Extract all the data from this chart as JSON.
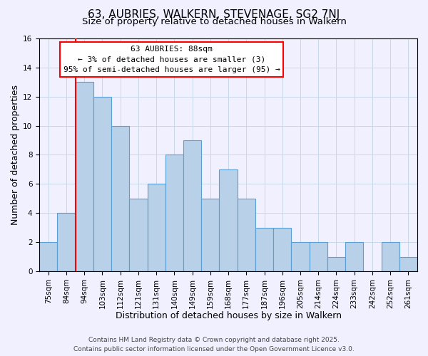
{
  "title": "63, AUBRIES, WALKERN, STEVENAGE, SG2 7NJ",
  "subtitle": "Size of property relative to detached houses in Walkern",
  "xlabel": "Distribution of detached houses by size in Walkern",
  "ylabel": "Number of detached properties",
  "bar_labels": [
    "75sqm",
    "84sqm",
    "94sqm",
    "103sqm",
    "112sqm",
    "121sqm",
    "131sqm",
    "140sqm",
    "149sqm",
    "159sqm",
    "168sqm",
    "177sqm",
    "187sqm",
    "196sqm",
    "205sqm",
    "214sqm",
    "224sqm",
    "233sqm",
    "242sqm",
    "252sqm",
    "261sqm"
  ],
  "bar_values": [
    2,
    4,
    13,
    12,
    10,
    5,
    6,
    8,
    9,
    5,
    7,
    5,
    3,
    3,
    2,
    2,
    1,
    2,
    0,
    2,
    1
  ],
  "bar_color": "#b8d0e8",
  "bar_edge_color": "#5a9fd4",
  "ylim": [
    0,
    16
  ],
  "yticks": [
    0,
    2,
    4,
    6,
    8,
    10,
    12,
    14,
    16
  ],
  "red_line_x": 1.5,
  "annotation_title": "63 AUBRIES: 88sqm",
  "annotation_line1": "← 3% of detached houses are smaller (3)",
  "annotation_line2": "95% of semi-detached houses are larger (95) →",
  "footer1": "Contains HM Land Registry data © Crown copyright and database right 2025.",
  "footer2": "Contains public sector information licensed under the Open Government Licence v3.0.",
  "background_color": "#f0f0ff",
  "grid_color": "#c8d8e8",
  "title_fontsize": 11,
  "subtitle_fontsize": 9.5,
  "axis_label_fontsize": 9,
  "tick_fontsize": 7.5,
  "footer_fontsize": 6.5
}
